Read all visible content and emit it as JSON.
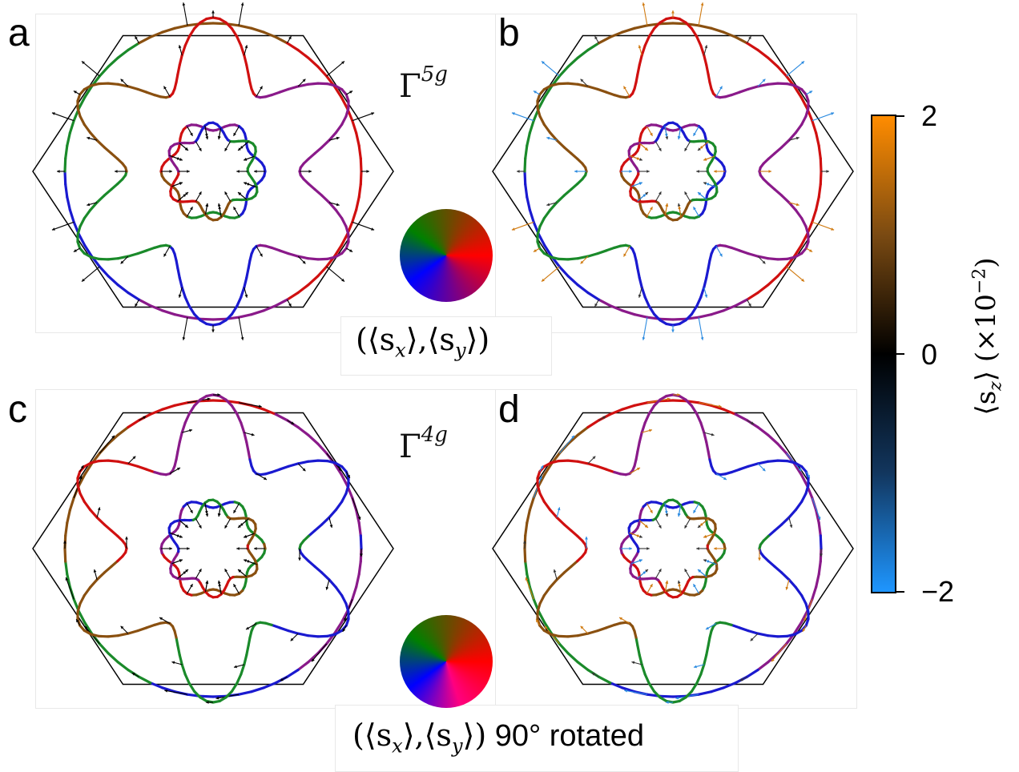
{
  "panels": [
    {
      "letter": "a",
      "variant": "inplane"
    },
    {
      "letter": "b",
      "variant": "sz"
    },
    {
      "letter": "c",
      "variant": "inplane"
    },
    {
      "letter": "d",
      "variant": "sz"
    }
  ],
  "rows": [
    {
      "gamma_base": "Γ",
      "gamma_sup": "5g",
      "label": "(⟨s",
      "label_x": "x",
      "label_mid": "⟩,⟨s",
      "label_y": "y",
      "label_end": "⟩)",
      "label_suffix": ""
    },
    {
      "gamma_base": "Γ",
      "gamma_sup": "4g",
      "label": "(⟨s",
      "label_x": "x",
      "label_mid": "⟩,⟨s",
      "label_y": "y",
      "label_end": "⟩)",
      "label_suffix": " 90° rotated"
    }
  ],
  "colorwheels": [
    {
      "colors": [
        "#ff0000",
        "#800080",
        "#0000ff",
        "#008000",
        "#804000",
        "#ff0000"
      ]
    },
    {
      "colors": [
        "#ff0000",
        "#ff0080",
        "#0000ff",
        "#008000",
        "#804000",
        "#ff0000"
      ]
    }
  ],
  "colorbar": {
    "max_label": "2",
    "mid_label": "0",
    "min_label": "−2",
    "title": "⟨s_z⟩ (×10⁻²)",
    "title_base": "⟨s",
    "title_sub": "z",
    "title_end": "⟩ (×10",
    "title_exp": "−2",
    "title_close": ")",
    "colors": {
      "max": "#ff8c00",
      "mid": "#000000",
      "min": "#1e96ff"
    }
  }
}
